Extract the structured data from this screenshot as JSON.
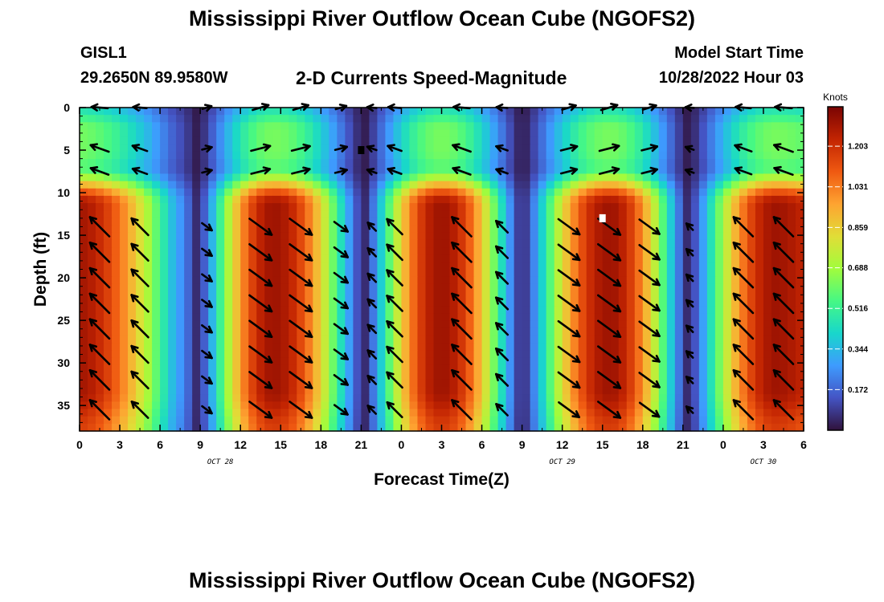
{
  "header": {
    "title": "Mississippi River Outflow Ocean Cube (NGOFS2)",
    "station_id": "GISL1",
    "station_coords": "29.2650N  89.9580W",
    "subtitle": "2-D Currents Speed-Magnitude",
    "model_start_label": "Model Start Time",
    "model_start_value": "10/28/2022 Hour 03"
  },
  "footer": {
    "title": "Mississippi River Outflow Ocean Cube (NGOFS2)"
  },
  "colors": {
    "scale": [
      "#30123b",
      "#4454c4",
      "#3e9bfe",
      "#18d7cb",
      "#46f884",
      "#a2fc3c",
      "#e1dd37",
      "#fea331",
      "#ef5911",
      "#c22402",
      "#7a0403"
    ],
    "arrow": "#000000"
  },
  "chart_data": {
    "type": "heatmap",
    "title": "2-D Currents Speed-Magnitude",
    "xlabel": "Forecast Time(Z)",
    "ylabel": "Depth (ft)",
    "x_range_hours": [
      0,
      54
    ],
    "ylim": [
      0,
      38
    ],
    "y_inverted": true,
    "x_ticks": [
      "0",
      "3",
      "6",
      "9",
      "12",
      "15",
      "18",
      "21",
      "0",
      "3",
      "6",
      "9",
      "12",
      "15",
      "18",
      "21",
      "0",
      "3",
      "6"
    ],
    "y_ticks": [
      0,
      5,
      10,
      15,
      20,
      25,
      30,
      35
    ],
    "date_labels": [
      {
        "text": "OCT 28",
        "hour": 10.5
      },
      {
        "text": "OCT 29",
        "hour": 36.0
      },
      {
        "text": "OCT 30",
        "hour": 51.0
      }
    ],
    "colorbar": {
      "title": "Knots",
      "ticks": [
        "1.203",
        "1.031",
        "0.859",
        "0.688",
        "0.516",
        "0.344",
        "0.172"
      ],
      "range": [
        0,
        1.37
      ]
    },
    "slack_hours": [
      8.8,
      21.2,
      33.0,
      45.4
    ],
    "peak_hours": [
      -0.5,
      14.5,
      27.0,
      39.5,
      52.0
    ],
    "max_surface_speed": 0.62,
    "max_deep_speed": 1.3,
    "transition_depth_ft": 10,
    "arrow_times": [
      1.5,
      4.5,
      9.5,
      13.5,
      16.5,
      19.5,
      21.8,
      23.5,
      28.5,
      31.5,
      36.5,
      39.5,
      42.5,
      45.5,
      49.5,
      52.5
    ],
    "arrow_depths": [
      0,
      4.8,
      7.5,
      14,
      17,
      20,
      23,
      26,
      29,
      32,
      35.5
    ],
    "markers": [
      {
        "hour": 21.0,
        "depth": 5,
        "color": "#000000"
      },
      {
        "hour": 39.0,
        "depth": 13,
        "color": "#ffffff"
      }
    ]
  }
}
